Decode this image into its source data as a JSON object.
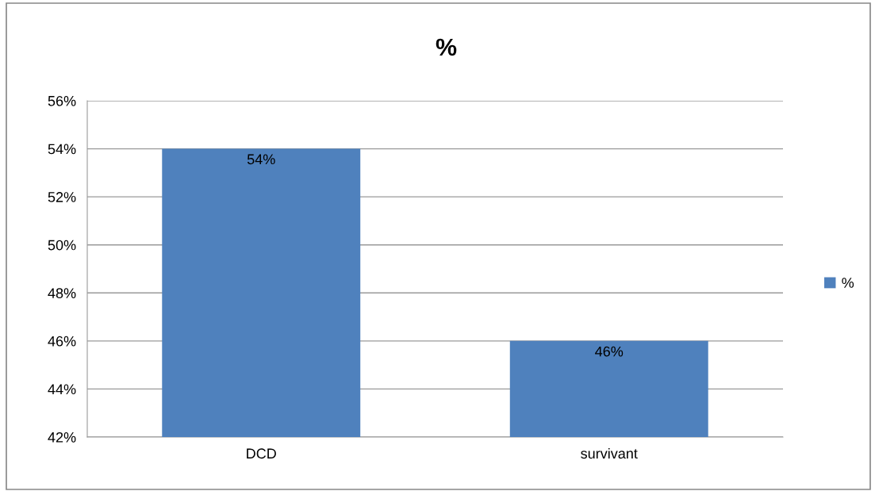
{
  "chart_data": {
    "type": "bar",
    "title": "%",
    "categories": [
      "DCD",
      "survivant"
    ],
    "series": [
      {
        "name": "%",
        "color": "#4f81bd",
        "values": [
          54,
          46
        ],
        "value_labels": [
          "54%",
          "46%"
        ]
      }
    ],
    "ylim": [
      42,
      56
    ],
    "yticks": [
      {
        "value": 42,
        "label": "42%"
      },
      {
        "value": 44,
        "label": "44%"
      },
      {
        "value": 46,
        "label": "46%"
      },
      {
        "value": 48,
        "label": "48%"
      },
      {
        "value": 50,
        "label": "50%"
      },
      {
        "value": 52,
        "label": "52%"
      },
      {
        "value": 54,
        "label": "54%"
      },
      {
        "value": 56,
        "label": "56%"
      }
    ],
    "grid": "y",
    "legend": "right"
  }
}
